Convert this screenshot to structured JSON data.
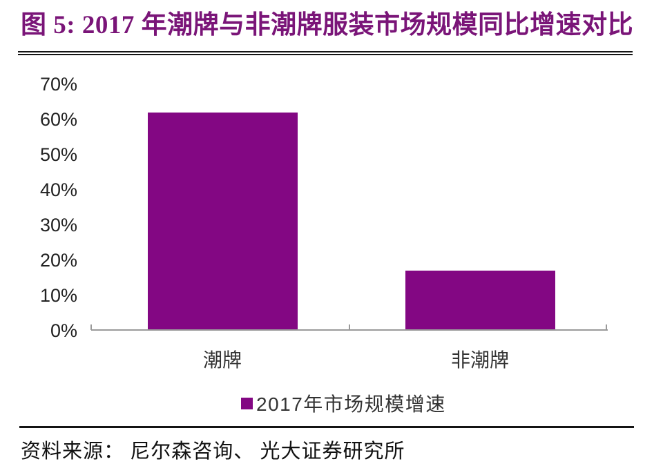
{
  "figure": {
    "title": "图 5: 2017 年潮牌与非潮牌服装市场规模同比增速对比",
    "title_color": "#7a1578",
    "source_label": "资料来源： 尼尔森咨询、 光大证券研究所"
  },
  "chart_data": {
    "type": "bar",
    "title": "2017 年潮牌与非潮牌服装市场规模同比增速对比",
    "categories": [
      "潮牌",
      "非潮牌"
    ],
    "series": [
      {
        "name": "2017年市场规模增速",
        "values": [
          62,
          17
        ]
      }
    ],
    "unit": "%",
    "ylim": [
      0,
      70
    ],
    "y_tick_step": 10,
    "y_tick_labels": [
      "0%",
      "10%",
      "20%",
      "30%",
      "40%",
      "50%",
      "60%",
      "70%"
    ],
    "grid": false,
    "bar_color": "#830783",
    "axis_color": "#9a9a9a",
    "legend": {
      "label": "2017年市场规模增速",
      "position": "bottom"
    }
  }
}
